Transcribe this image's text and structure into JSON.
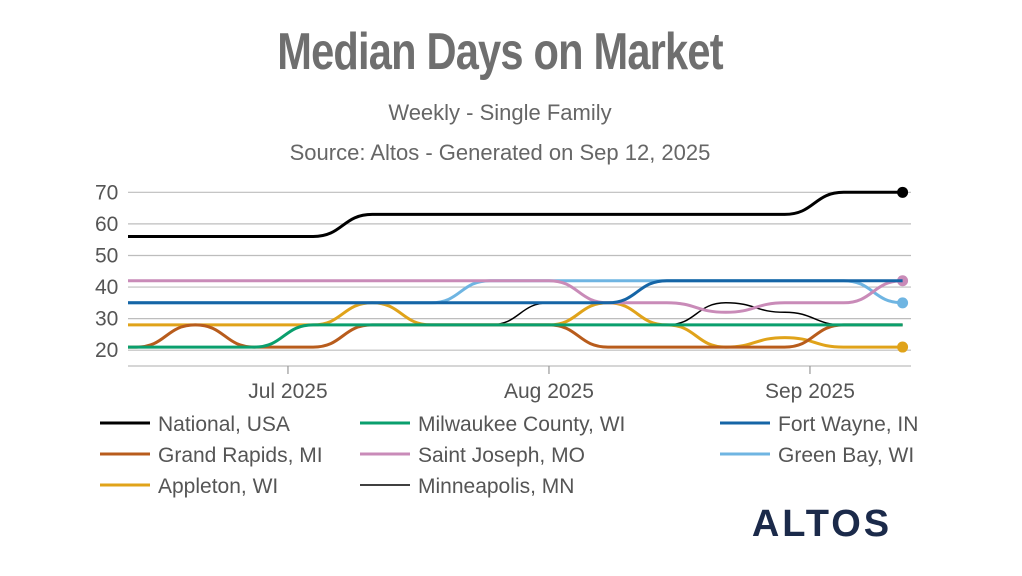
{
  "colors": {
    "title": "#6f6f6f",
    "text": "#555555",
    "grid": "#bdbdbd",
    "logo": "#1b2a4a"
  },
  "logo_text": "ALTOS",
  "chart_data": {
    "type": "line",
    "title": "Median Days on Market",
    "subtitle": "Weekly - Single Family",
    "source": "Source: Altos - Generated on Sep 12, 2025",
    "xlabel": "",
    "ylabel": "",
    "x": [
      "2025-06-13",
      "2025-06-20",
      "2025-06-27",
      "2025-07-04",
      "2025-07-11",
      "2025-07-18",
      "2025-07-25",
      "2025-08-01",
      "2025-08-08",
      "2025-08-15",
      "2025-08-22",
      "2025-08-29",
      "2025-09-05",
      "2025-09-12"
    ],
    "x_ticks": [
      {
        "date": "2025-07-01",
        "label": "Jul 2025"
      },
      {
        "date": "2025-08-01",
        "label": "Aug 2025"
      },
      {
        "date": "2025-09-01",
        "label": "Sep 2025"
      }
    ],
    "xlim": [
      "2025-06-12",
      "2025-09-13"
    ],
    "ylim": [
      15,
      72
    ],
    "y_ticks": [
      20,
      30,
      40,
      50,
      60,
      70
    ],
    "grid": "horizontal",
    "legend_position": "bottom",
    "series": [
      {
        "name": "National, USA",
        "color": "#000000",
        "width": 3,
        "marker": true,
        "values": [
          56,
          56,
          56,
          56,
          63,
          63,
          63,
          63,
          63,
          63,
          63,
          63,
          70,
          70
        ]
      },
      {
        "name": "Milwaukee County, WI",
        "color": "#0a9f6d",
        "width": 3,
        "marker": false,
        "values": [
          21,
          21,
          21,
          28,
          28,
          28,
          28,
          28,
          28,
          28,
          28,
          28,
          28,
          28
        ]
      },
      {
        "name": "Fort Wayne, IN",
        "color": "#1565a6",
        "width": 3,
        "marker": false,
        "values": [
          35,
          35,
          35,
          35,
          35,
          35,
          35,
          35,
          35,
          42,
          42,
          42,
          42,
          42
        ]
      },
      {
        "name": "Grand Rapids, MI",
        "color": "#b85c1c",
        "width": 3,
        "marker": false,
        "values": [
          21,
          28,
          21,
          21,
          28,
          28,
          28,
          28,
          21,
          21,
          21,
          21,
          28,
          28
        ]
      },
      {
        "name": "Saint Joseph, MO",
        "color": "#c98bb8",
        "width": 3,
        "marker": true,
        "values": [
          42,
          42,
          42,
          42,
          42,
          42,
          42,
          42,
          35,
          35,
          32,
          35,
          35,
          42
        ]
      },
      {
        "name": "Green Bay, WI",
        "color": "#6fb5e2",
        "width": 3,
        "marker": true,
        "values": [
          35,
          35,
          35,
          35,
          35,
          35,
          42,
          42,
          42,
          42,
          42,
          42,
          42,
          35
        ]
      },
      {
        "name": "Appleton, WI",
        "color": "#e0a31a",
        "width": 3,
        "marker": true,
        "values": [
          28,
          28,
          28,
          28,
          35,
          28,
          28,
          28,
          35,
          28,
          21,
          24,
          21,
          21
        ]
      },
      {
        "name": "Minneapolis, MN",
        "color": "#000000",
        "width": 1.5,
        "marker": false,
        "values": [
          28,
          28,
          28,
          28,
          28,
          28,
          28,
          35,
          35,
          28,
          35,
          32,
          28,
          28
        ]
      }
    ]
  }
}
